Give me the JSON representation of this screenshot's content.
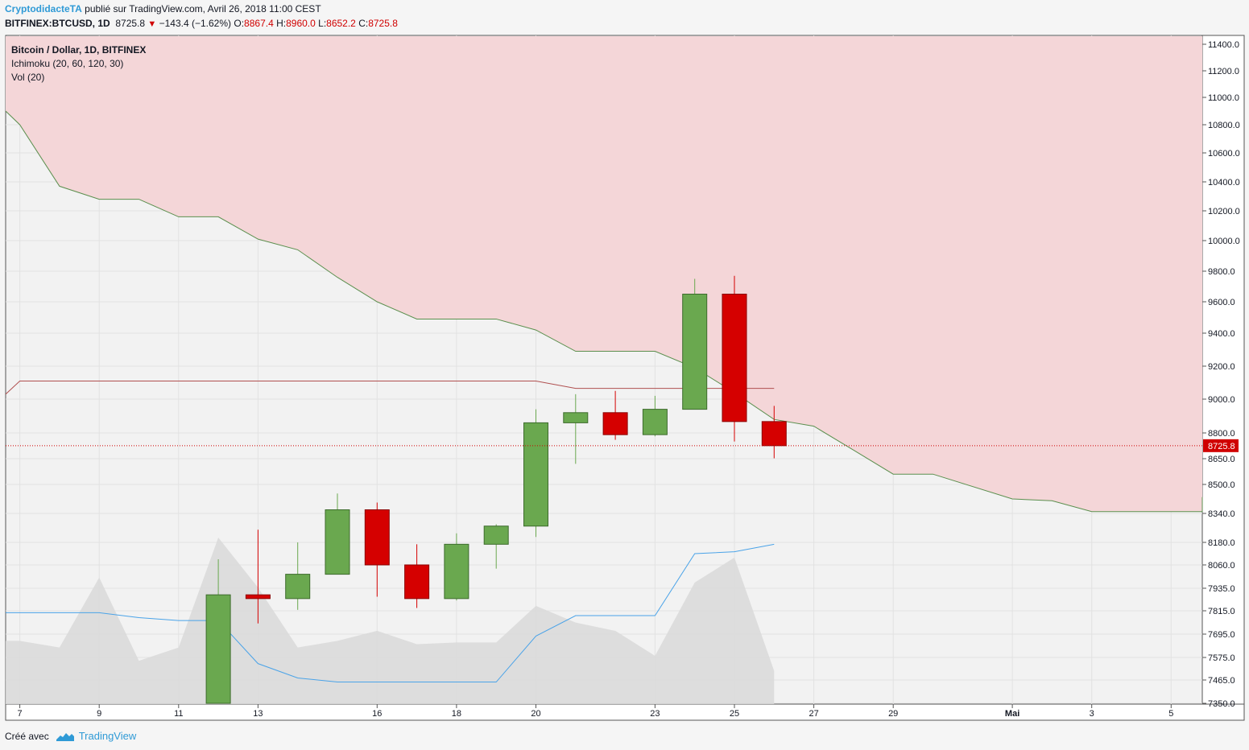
{
  "header": {
    "author": "CryptodidacteTA",
    "published_text": "publié sur TradingView.com, Avril 26, 2018 11:00 CEST",
    "symbol": "BITFINEX:BTCUSD, 1D",
    "last": "8725.8",
    "change": "−143.4 (−1.62%)",
    "open_label": "O:",
    "open": "8867.4",
    "high_label": "H:",
    "high": "8960.0",
    "low_label": "L:",
    "low": "8652.2",
    "close_label": "C:",
    "close": "8725.8"
  },
  "legend": {
    "title": "Bitcoin / Dollar, 1D, BITFINEX",
    "ichimoku": "Ichimoku (20, 60, 120, 30)",
    "volume": "Vol (20)"
  },
  "footer": {
    "created_with": "Créé avec",
    "brand": "TradingView"
  },
  "colors": {
    "up": "#6aa84f",
    "down": "#d50000",
    "cloud": "#f4d6d8",
    "span": "#5b8f4e",
    "baseline": "#b05050",
    "tenkan": "#4aa3e8",
    "volume": "#d9d9d9"
  },
  "chart_data": {
    "type": "candlestick",
    "title": "Bitcoin / Dollar, 1D, BITFINEX",
    "price_axis_ticks": [
      "11400.0",
      "11200.0",
      "11000.0",
      "10800.0",
      "10600.0",
      "10400.0",
      "10200.0",
      "10000.0",
      "9800.0",
      "9600.0",
      "9400.0",
      "9200.0",
      "9000.0",
      "8800.0",
      "8650.0",
      "8500.0",
      "8340.0",
      "8180.0",
      "8060.0",
      "7935.0",
      "7815.0",
      "7695.0",
      "7575.0",
      "7465.0",
      "7350.0"
    ],
    "time_axis_ticks": [
      "7",
      "9",
      "11",
      "13",
      "16",
      "18",
      "20",
      "23",
      "25",
      "27",
      "29",
      "Mai",
      "3",
      "5"
    ],
    "last_price_label": "8725.8",
    "candles": [
      {
        "date": "Apr 12",
        "open": 7350,
        "high": 8090,
        "low": 7350,
        "close": 7900
      },
      {
        "date": "Apr 13",
        "open": 7900,
        "high": 8250,
        "low": 7750,
        "close": 7880
      },
      {
        "date": "Apr 14",
        "open": 7880,
        "high": 8180,
        "low": 7820,
        "close": 8010
      },
      {
        "date": "Apr 15",
        "open": 8010,
        "high": 8450,
        "low": 8010,
        "close": 8360
      },
      {
        "date": "Apr 16",
        "open": 8360,
        "high": 8400,
        "low": 7890,
        "close": 8060
      },
      {
        "date": "Apr 17",
        "open": 8060,
        "high": 8170,
        "low": 7830,
        "close": 7880
      },
      {
        "date": "Apr 18",
        "open": 7880,
        "high": 8230,
        "low": 7870,
        "close": 8170
      },
      {
        "date": "Apr 19",
        "open": 8170,
        "high": 8280,
        "low": 8040,
        "close": 8270
      },
      {
        "date": "Apr 20",
        "open": 8270,
        "high": 8940,
        "low": 8210,
        "close": 8860
      },
      {
        "date": "Apr 21",
        "open": 8860,
        "high": 9030,
        "low": 8620,
        "close": 8920
      },
      {
        "date": "Apr 22",
        "open": 8920,
        "high": 9050,
        "low": 8760,
        "close": 8790
      },
      {
        "date": "Apr 23",
        "open": 8790,
        "high": 9020,
        "low": 8780,
        "close": 8940
      },
      {
        "date": "Apr 24",
        "open": 8940,
        "high": 9750,
        "low": 8940,
        "close": 9650
      },
      {
        "date": "Apr 25",
        "open": 9650,
        "high": 9770,
        "low": 8750,
        "close": 8867.4
      },
      {
        "date": "Apr 26",
        "open": 8867.4,
        "high": 8960,
        "low": 8652.2,
        "close": 8725.8
      }
    ],
    "cloud_edge_points": [
      {
        "date": "Apr 6",
        "value": 10900
      },
      {
        "date": "Apr 7",
        "value": 10800
      },
      {
        "date": "Apr 8",
        "value": 10370
      },
      {
        "date": "Apr 9",
        "value": 10280
      },
      {
        "date": "Apr 10",
        "value": 10280
      },
      {
        "date": "Apr 11",
        "value": 10160
      },
      {
        "date": "Apr 12",
        "value": 10160
      },
      {
        "date": "Apr 13",
        "value": 10010
      },
      {
        "date": "Apr 14",
        "value": 9940
      },
      {
        "date": "Apr 15",
        "value": 9760
      },
      {
        "date": "Apr 16",
        "value": 9600
      },
      {
        "date": "Apr 17",
        "value": 9490
      },
      {
        "date": "Apr 18",
        "value": 9490
      },
      {
        "date": "Apr 19",
        "value": 9490
      },
      {
        "date": "Apr 20",
        "value": 9420
      },
      {
        "date": "Apr 21",
        "value": 9290
      },
      {
        "date": "Apr 22",
        "value": 9290
      },
      {
        "date": "Apr 23",
        "value": 9290
      },
      {
        "date": "Apr 24",
        "value": 9190
      },
      {
        "date": "Apr 25",
        "value": 9040
      },
      {
        "date": "Apr 26",
        "value": 8880
      },
      {
        "date": "Apr 27",
        "value": 8840
      },
      {
        "date": "Apr 28",
        "value": 8700
      },
      {
        "date": "Apr 29",
        "value": 8560
      },
      {
        "date": "Apr 30",
        "value": 8560
      },
      {
        "date": "Mai 1",
        "value": 8420
      },
      {
        "date": "Mai 2",
        "value": 8410
      },
      {
        "date": "Mai 3",
        "value": 8350
      },
      {
        "date": "Mai 4",
        "value": 8350
      },
      {
        "date": "Mai 5",
        "value": 8350
      },
      {
        "date": "Mai 6",
        "value": 8350
      },
      {
        "date": "Mai 7",
        "value": 8430
      }
    ],
    "base_line": [
      {
        "date": "Apr 6",
        "value": 9030
      },
      {
        "date": "Apr 7",
        "value": 9110
      },
      {
        "date": "Apr 20",
        "value": 9110
      },
      {
        "date": "Apr 21",
        "value": 9065
      },
      {
        "date": "Apr 26",
        "value": 9065
      }
    ],
    "conversion_line": [
      {
        "date": "Apr 6",
        "value": 7805
      },
      {
        "date": "Apr 9",
        "value": 7805
      },
      {
        "date": "Apr 10",
        "value": 7780
      },
      {
        "date": "Apr 11",
        "value": 7765
      },
      {
        "date": "Apr 12",
        "value": 7765
      },
      {
        "date": "Apr 13",
        "value": 7545
      },
      {
        "date": "Apr 14",
        "value": 7475
      },
      {
        "date": "Apr 15",
        "value": 7455
      },
      {
        "date": "Apr 19",
        "value": 7455
      },
      {
        "date": "Apr 20",
        "value": 7685
      },
      {
        "date": "Apr 21",
        "value": 7790
      },
      {
        "date": "Apr 23",
        "value": 7790
      },
      {
        "date": "Apr 24",
        "value": 8120
      },
      {
        "date": "Apr 25",
        "value": 8130
      },
      {
        "date": "Apr 26",
        "value": 8170
      }
    ],
    "volume_relative": [
      {
        "date": "Apr 6",
        "value": 0.38
      },
      {
        "date": "Apr 7",
        "value": 0.38
      },
      {
        "date": "Apr 8",
        "value": 0.34
      },
      {
        "date": "Apr 9",
        "value": 0.76
      },
      {
        "date": "Apr 10",
        "value": 0.26
      },
      {
        "date": "Apr 11",
        "value": 0.34
      },
      {
        "date": "Apr 12",
        "value": 1.0
      },
      {
        "date": "Apr 13",
        "value": 0.7
      },
      {
        "date": "Apr 14",
        "value": 0.34
      },
      {
        "date": "Apr 15",
        "value": 0.38
      },
      {
        "date": "Apr 16",
        "value": 0.44
      },
      {
        "date": "Apr 17",
        "value": 0.36
      },
      {
        "date": "Apr 18",
        "value": 0.37
      },
      {
        "date": "Apr 19",
        "value": 0.37
      },
      {
        "date": "Apr 20",
        "value": 0.59
      },
      {
        "date": "Apr 21",
        "value": 0.49
      },
      {
        "date": "Apr 22",
        "value": 0.44
      },
      {
        "date": "Apr 23",
        "value": 0.29
      },
      {
        "date": "Apr 24",
        "value": 0.73
      },
      {
        "date": "Apr 25",
        "value": 0.88
      },
      {
        "date": "Apr 26",
        "value": 0.2
      }
    ]
  }
}
